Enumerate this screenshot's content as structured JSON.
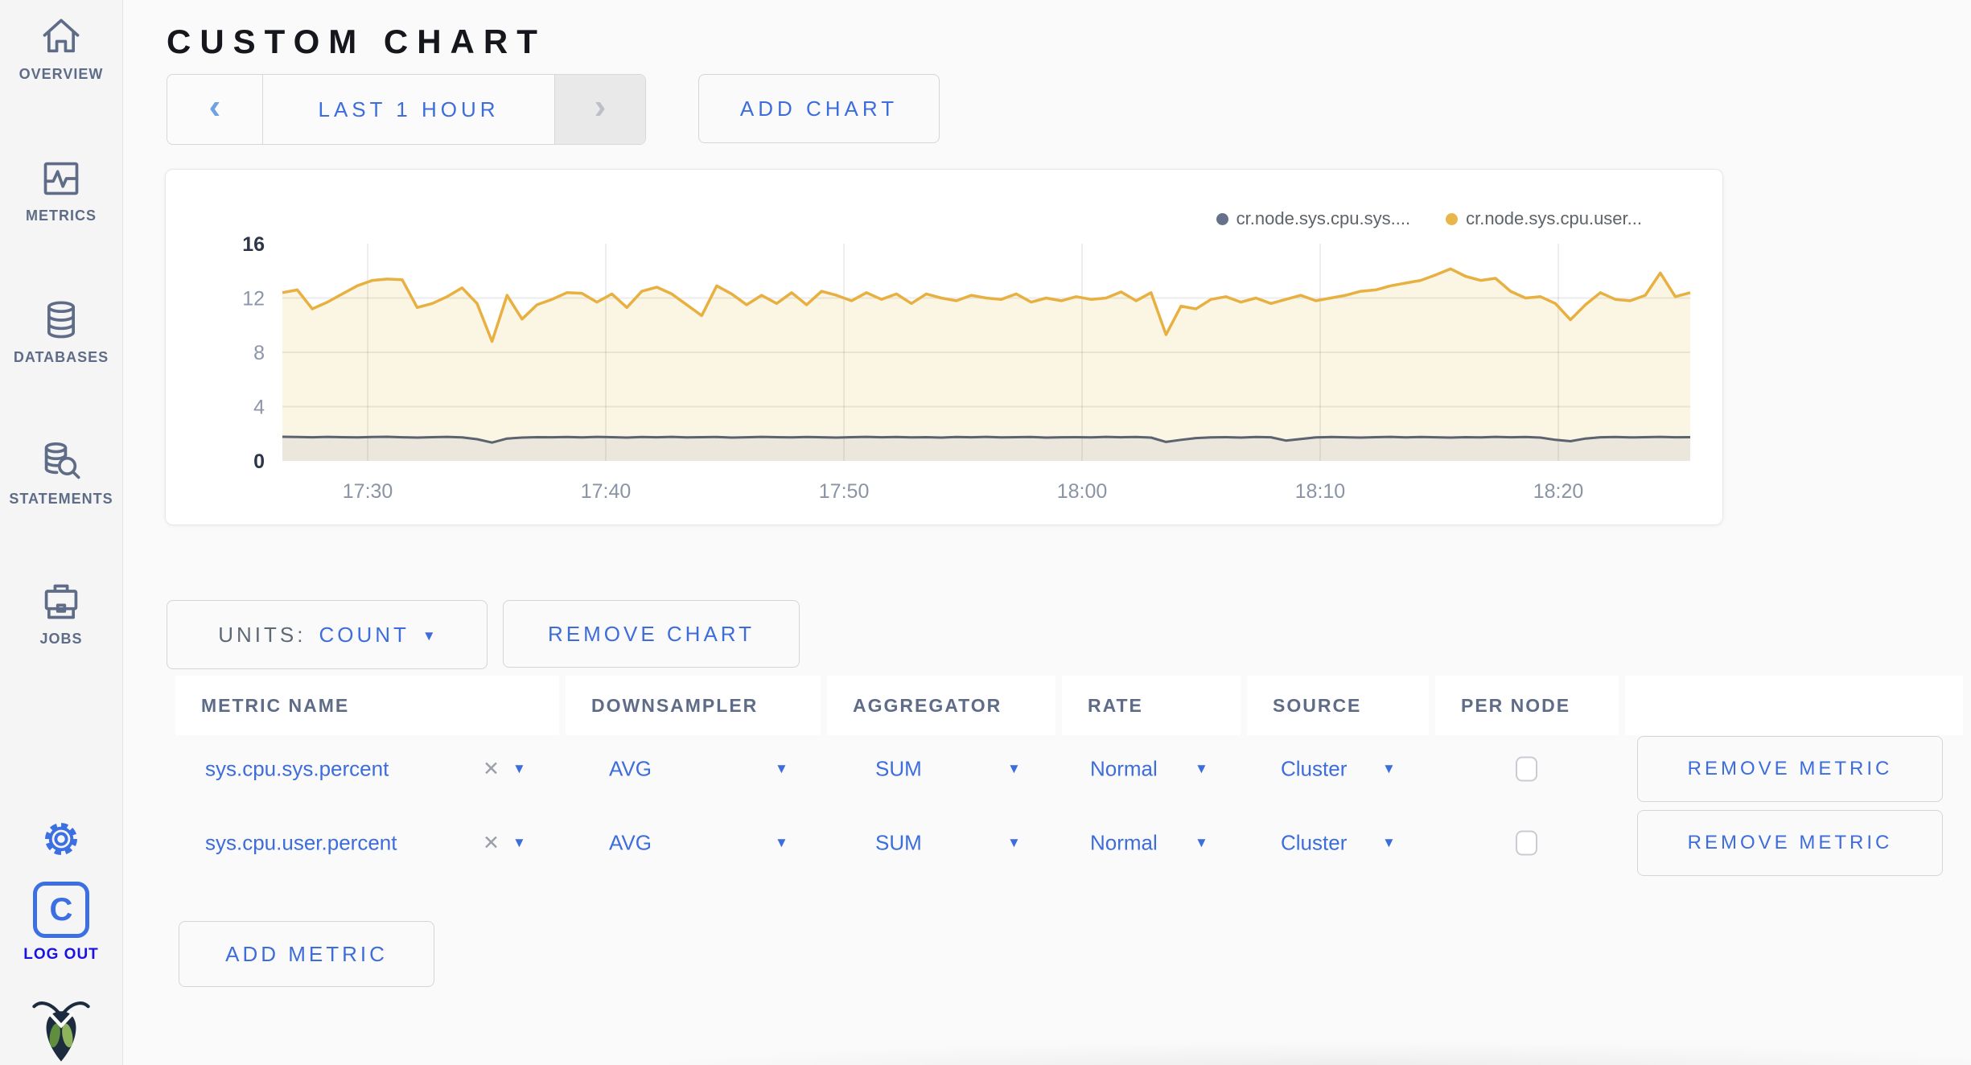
{
  "colors": {
    "accent_blue": "#3D6DDB",
    "slate": "#5F6C87",
    "logout_blue": "#1713E6",
    "series_sys": "#5B6370",
    "series_user": "#E7B041"
  },
  "sidebar": {
    "items": [
      {
        "label": "OVERVIEW",
        "icon": "home-icon"
      },
      {
        "label": "METRICS",
        "icon": "metrics-icon"
      },
      {
        "label": "DATABASES",
        "icon": "database-icon"
      },
      {
        "label": "STATEMENTS",
        "icon": "statements-icon"
      },
      {
        "label": "JOBS",
        "icon": "briefcase-icon"
      }
    ],
    "logout_label": "LOG OUT"
  },
  "header": {
    "title": "CUSTOM CHART"
  },
  "toolbar": {
    "prev_glyph": "‹",
    "next_glyph": "›",
    "time_range": "LAST 1 HOUR",
    "add_chart": "ADD CHART"
  },
  "chart_data": {
    "type": "line",
    "title": "",
    "xlabel": "",
    "ylabel": "",
    "ylim": [
      0,
      16
    ],
    "y_ticks": [
      0,
      4,
      8,
      12,
      16
    ],
    "y_ticks_bold": [
      0,
      16
    ],
    "grid": true,
    "legend_position": "top-right",
    "x_ticks": [
      {
        "label": "17:30",
        "pos": 0.0606
      },
      {
        "label": "17:40",
        "pos": 0.2297
      },
      {
        "label": "17:50",
        "pos": 0.3989
      },
      {
        "label": "18:00",
        "pos": 0.568
      },
      {
        "label": "18:10",
        "pos": 0.7371
      },
      {
        "label": "18:20",
        "pos": 0.9063
      }
    ],
    "series": [
      {
        "name": "cr.node.sys.cpu.sys....",
        "color": "#5B6370",
        "fill": "#EBE7DC",
        "values": [
          1.78,
          1.76,
          1.74,
          1.77,
          1.75,
          1.73,
          1.76,
          1.78,
          1.74,
          1.72,
          1.75,
          1.77,
          1.73,
          1.6,
          1.35,
          1.65,
          1.72,
          1.75,
          1.74,
          1.76,
          1.73,
          1.77,
          1.75,
          1.72,
          1.76,
          1.74,
          1.77,
          1.73,
          1.75,
          1.76,
          1.72,
          1.74,
          1.77,
          1.75,
          1.73,
          1.76,
          1.74,
          1.72,
          1.75,
          1.77,
          1.74,
          1.76,
          1.73,
          1.75,
          1.72,
          1.76,
          1.74,
          1.77,
          1.73,
          1.75,
          1.76,
          1.72,
          1.74,
          1.75,
          1.73,
          1.77,
          1.74,
          1.76,
          1.72,
          1.4,
          1.55,
          1.68,
          1.73,
          1.75,
          1.72,
          1.76,
          1.74,
          1.5,
          1.62,
          1.73,
          1.76,
          1.74,
          1.72,
          1.75,
          1.77,
          1.73,
          1.76,
          1.74,
          1.72,
          1.75,
          1.73,
          1.77,
          1.74,
          1.76,
          1.72,
          1.55,
          1.45,
          1.65,
          1.74,
          1.76,
          1.73,
          1.75,
          1.77,
          1.74,
          1.75
        ]
      },
      {
        "name": "cr.node.sys.cpu.user...",
        "color": "#E7B041",
        "fill": "#FBF5E3",
        "values": [
          12.4,
          12.6,
          11.2,
          11.7,
          12.3,
          12.9,
          13.3,
          13.4,
          13.35,
          11.3,
          11.6,
          12.1,
          12.75,
          11.6,
          8.8,
          12.2,
          10.45,
          11.5,
          11.9,
          12.4,
          12.35,
          11.7,
          12.3,
          11.3,
          12.5,
          12.8,
          12.3,
          11.5,
          10.7,
          12.9,
          12.3,
          11.5,
          12.2,
          11.6,
          12.4,
          11.5,
          12.5,
          12.2,
          11.8,
          12.4,
          11.9,
          12.3,
          11.6,
          12.3,
          12.0,
          11.8,
          12.2,
          12.0,
          11.9,
          12.3,
          11.7,
          12.0,
          11.8,
          12.1,
          11.9,
          12.0,
          12.45,
          11.8,
          12.4,
          9.3,
          11.4,
          11.2,
          11.9,
          12.1,
          11.7,
          12.0,
          11.6,
          11.9,
          12.2,
          11.8,
          12.0,
          12.2,
          12.5,
          12.6,
          12.9,
          13.1,
          13.3,
          13.7,
          14.15,
          13.6,
          13.3,
          13.45,
          12.5,
          12.0,
          12.1,
          11.6,
          10.4,
          11.5,
          12.4,
          11.9,
          11.8,
          12.2,
          13.85,
          12.1,
          12.4
        ]
      }
    ]
  },
  "chart_controls": {
    "units_label": "UNITS:",
    "units_value": "COUNT",
    "caret_glyph": "▼",
    "remove_chart": "REMOVE CHART"
  },
  "metrics_table": {
    "headers": [
      "METRIC NAME",
      "DOWNSAMPLER",
      "AGGREGATOR",
      "RATE",
      "SOURCE",
      "PER NODE",
      ""
    ],
    "close_glyph": "✕",
    "caret_glyph": "▼",
    "rows": [
      {
        "name": "sys.cpu.sys.percent",
        "downsampler": "AVG",
        "aggregator": "SUM",
        "rate": "Normal",
        "source": "Cluster",
        "per_node": false,
        "remove_label": "REMOVE METRIC"
      },
      {
        "name": "sys.cpu.user.percent",
        "downsampler": "AVG",
        "aggregator": "SUM",
        "rate": "Normal",
        "source": "Cluster",
        "per_node": false,
        "remove_label": "REMOVE METRIC"
      }
    ],
    "add_metric": "ADD METRIC"
  }
}
